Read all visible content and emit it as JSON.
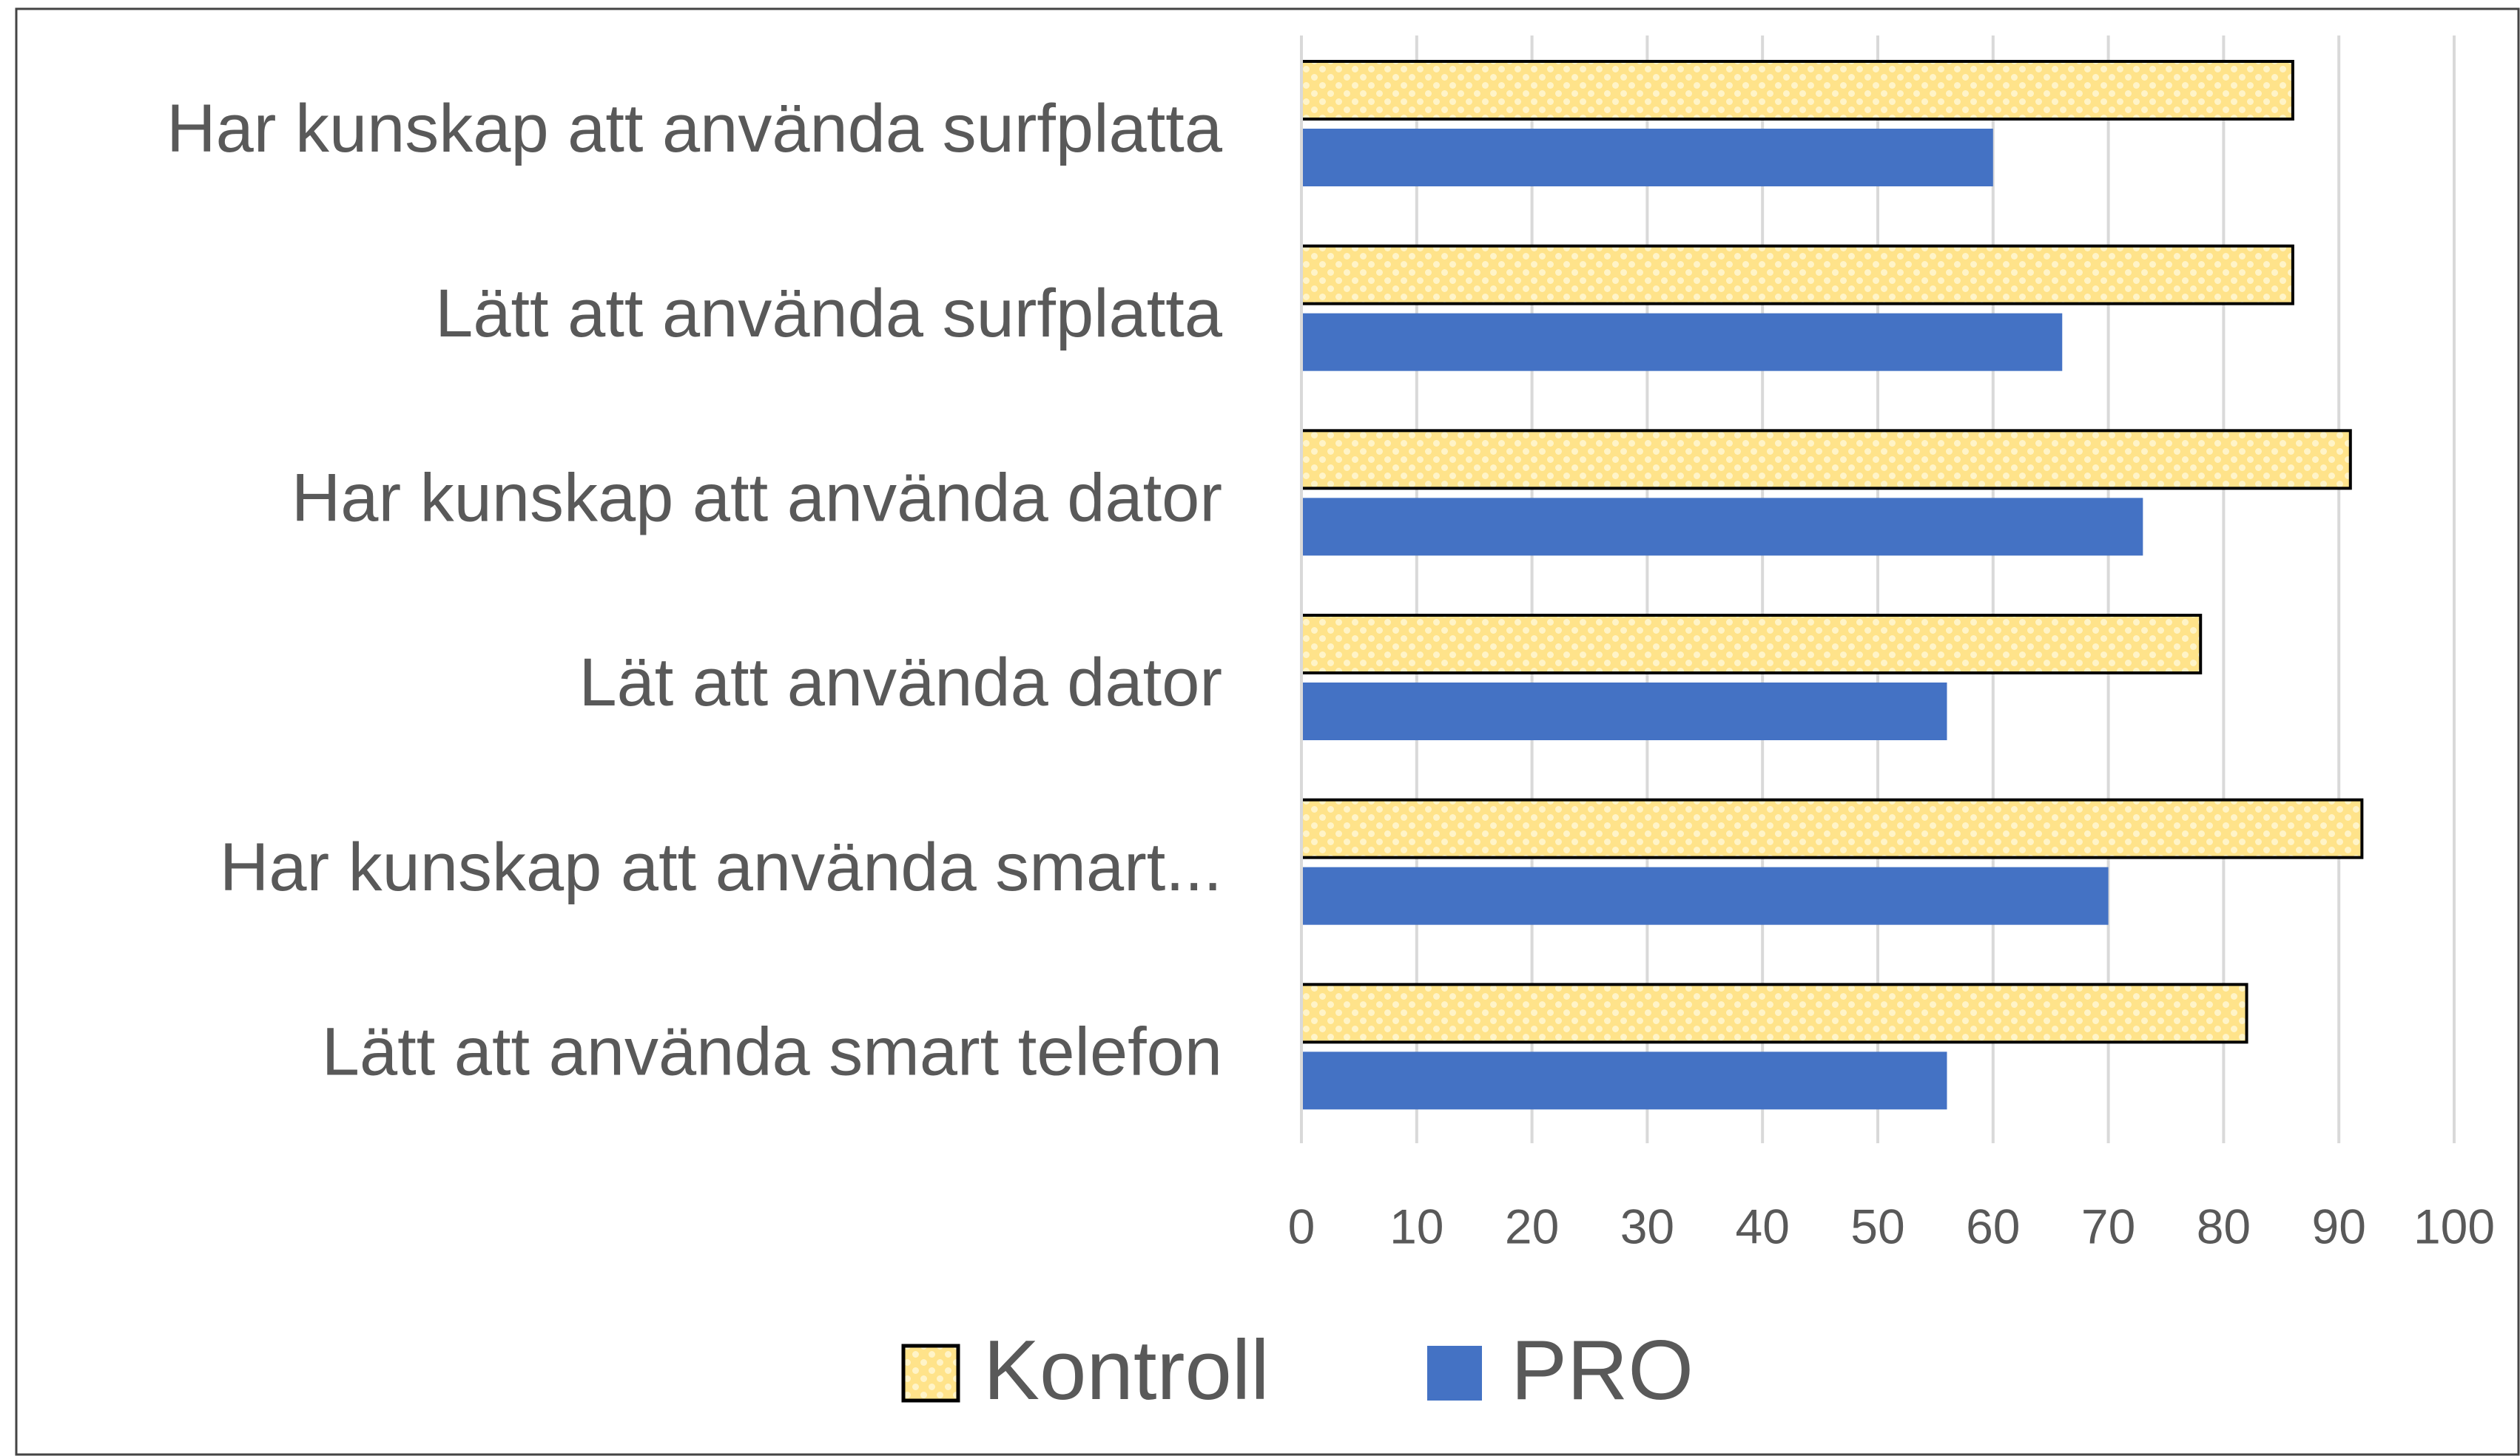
{
  "chart_data": {
    "type": "bar",
    "orientation": "horizontal",
    "categories": [
      "Har kunskap att använda surfplatta",
      "Lätt att använda surfplatta",
      "Har kunskap att använda dator",
      "Lät att använda dator",
      "Har kunskap att använda smart...",
      "Lätt att använda smart telefon"
    ],
    "series": [
      {
        "name": "Kontroll",
        "color": "#ffe38a",
        "values": [
          86,
          86,
          91,
          78,
          92,
          82
        ]
      },
      {
        "name": "PRO",
        "color": "#4472c4",
        "values": [
          60,
          66,
          73,
          56,
          70,
          56
        ]
      }
    ],
    "xlim": [
      0,
      100
    ],
    "xticks": [
      0,
      10,
      20,
      30,
      40,
      50,
      60,
      70,
      80,
      90,
      100
    ],
    "grid": true,
    "legend": "bottom"
  }
}
